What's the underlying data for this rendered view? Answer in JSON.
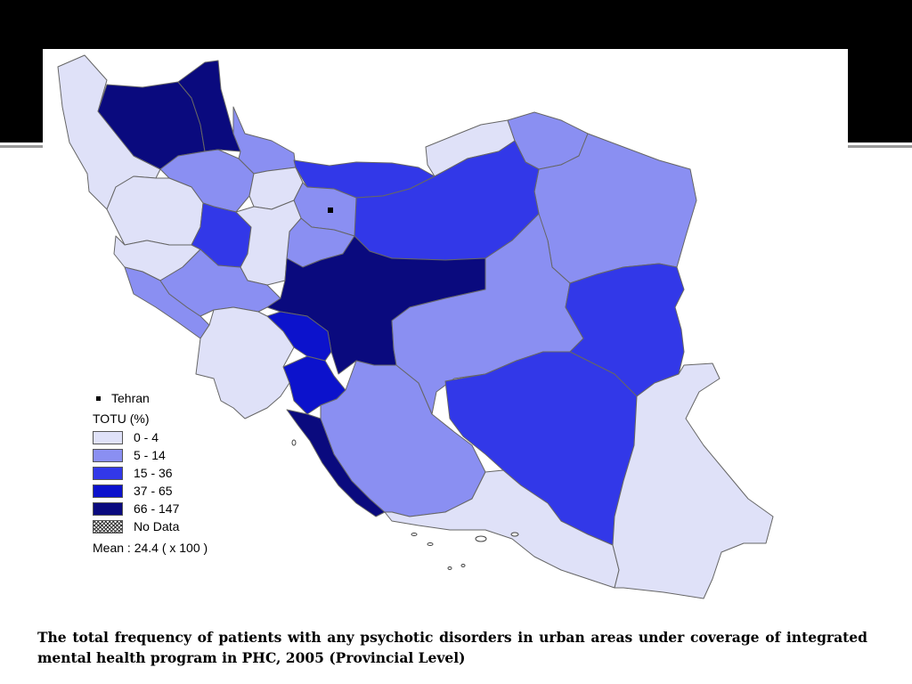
{
  "map": {
    "region": "Iran",
    "capital_marker": "Tehran",
    "colors": {
      "class_0_4": "#dfe1f8",
      "class_5_14": "#8a8ff2",
      "class_15_36": "#3238e8",
      "class_37_65": "#0c12cc",
      "class_66_147": "#0a0a7e",
      "border": "#666666"
    },
    "provinces": [
      {
        "name": "West Azerbaijan",
        "class": "class_0_4"
      },
      {
        "name": "East Azerbaijan",
        "class": "class_66_147"
      },
      {
        "name": "Ardabil",
        "class": "class_66_147"
      },
      {
        "name": "Zanjan",
        "class": "class_5_14"
      },
      {
        "name": "Gilan",
        "class": "class_5_14"
      },
      {
        "name": "Mazandaran",
        "class": "class_15_36"
      },
      {
        "name": "Golestan",
        "class": "class_0_4"
      },
      {
        "name": "North Khorasan",
        "class": "class_5_14"
      },
      {
        "name": "Razavi Khorasan",
        "class": "class_5_14"
      },
      {
        "name": "Semnan",
        "class": "class_15_36"
      },
      {
        "name": "Tehran",
        "class": "class_5_14"
      },
      {
        "name": "Qazvin",
        "class": "class_0_4"
      },
      {
        "name": "Kurdistan",
        "class": "class_0_4"
      },
      {
        "name": "Hamadan",
        "class": "class_15_36"
      },
      {
        "name": "Markazi",
        "class": "class_0_4"
      },
      {
        "name": "Qom",
        "class": "class_5_14"
      },
      {
        "name": "Kermanshah",
        "class": "class_0_4"
      },
      {
        "name": "Ilam",
        "class": "class_5_14"
      },
      {
        "name": "Lorestan",
        "class": "class_5_14"
      },
      {
        "name": "Isfahan",
        "class": "class_66_147"
      },
      {
        "name": "Chaharmahal and Bakhtiari",
        "class": "class_37_65"
      },
      {
        "name": "Kohgiluyeh and Boyer-Ahmad",
        "class": "class_37_65"
      },
      {
        "name": "Khuzestan",
        "class": "class_0_4"
      },
      {
        "name": "Bushehr",
        "class": "class_66_147"
      },
      {
        "name": "Fars",
        "class": "class_5_14"
      },
      {
        "name": "Yazd",
        "class": "class_5_14"
      },
      {
        "name": "South Khorasan",
        "class": "class_15_36"
      },
      {
        "name": "Kerman",
        "class": "class_15_36"
      },
      {
        "name": "Hormozgan",
        "class": "class_0_4"
      },
      {
        "name": "Sistan and Baluchestan",
        "class": "class_0_4"
      }
    ]
  },
  "legend": {
    "tehran_label": "Tehran",
    "title": "TOTU (%)",
    "classes": [
      {
        "label": "0 - 4",
        "color": "#dfe1f8"
      },
      {
        "label": "5 - 14",
        "color": "#8a8ff2"
      },
      {
        "label": "15 - 36",
        "color": "#3238e8"
      },
      {
        "label": "37 - 65",
        "color": "#0c12cc"
      },
      {
        "label": "66 - 147",
        "color": "#0a0a7e"
      }
    ],
    "no_data_label": "No Data",
    "mean_label": "Mean : 24.4 ( x 100 )"
  },
  "caption": "The total frequency of patients with any psychotic disorders in urban areas under coverage of integrated mental health program in PHC, 2005 (Provincial Level)"
}
